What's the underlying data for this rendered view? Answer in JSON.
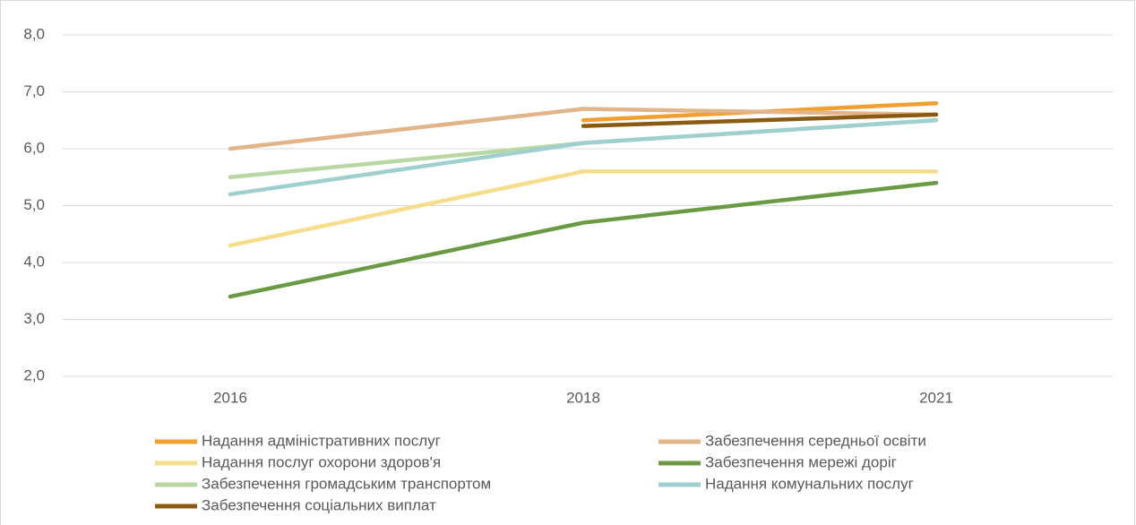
{
  "chart_data": {
    "type": "line",
    "categories": [
      "2016",
      "2018",
      "2021"
    ],
    "series": [
      {
        "name": "Надання адміністративних послуг",
        "color": "#f0a030",
        "values": [
          null,
          6.5,
          6.8
        ]
      },
      {
        "name": "Забезпечення середньої освіти",
        "color": "#e2b48a",
        "values": [
          6.0,
          6.7,
          6.6
        ]
      },
      {
        "name": "Надання послуг охорони здоров'я",
        "color": "#f6dd8c",
        "values": [
          4.3,
          5.6,
          5.6
        ]
      },
      {
        "name": "Забезпечення мережі доріг",
        "color": "#6b9a44",
        "values": [
          3.4,
          4.7,
          5.4
        ]
      },
      {
        "name": "Забезпечення громадським транспортом",
        "color": "#b8d7a3",
        "values": [
          5.5,
          6.1,
          6.5
        ]
      },
      {
        "name": "Надання комунальних послуг",
        "color": "#a0cfcf",
        "values": [
          5.2,
          6.1,
          6.5
        ]
      },
      {
        "name": "Забезпечення соціальних виплат",
        "color": "#8b5a12",
        "values": [
          null,
          6.4,
          6.6
        ]
      }
    ],
    "ylim": [
      2,
      8
    ],
    "yticks": [
      {
        "value": 2,
        "label": "2,0"
      },
      {
        "value": 3,
        "label": "3,0"
      },
      {
        "value": 4,
        "label": "4,0"
      },
      {
        "value": 5,
        "label": "5,0"
      },
      {
        "value": 6,
        "label": "6,0"
      },
      {
        "value": 7,
        "label": "7,0"
      },
      {
        "value": 8,
        "label": "8,0"
      }
    ],
    "grid": true,
    "legend": "bottom"
  }
}
